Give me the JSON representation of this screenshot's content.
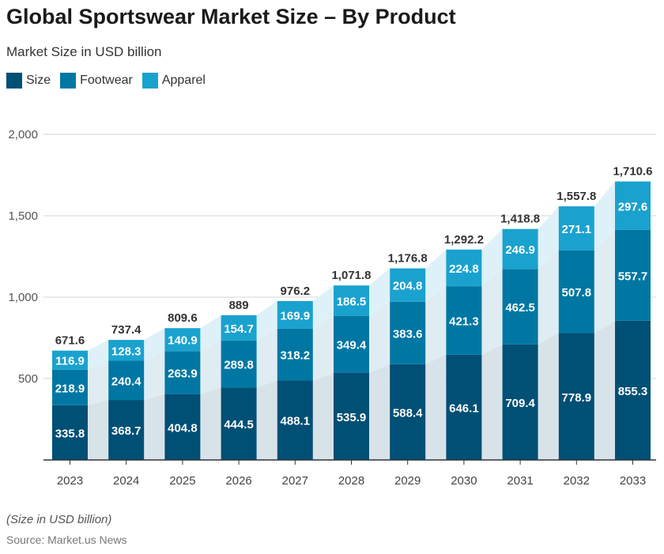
{
  "chart_data": {
    "type": "bar",
    "stacked": true,
    "title": "Global Sportswear Market Size – By Product",
    "subtitle": "Market Size in USD billion",
    "categories": [
      "2023",
      "2024",
      "2025",
      "2026",
      "2027",
      "2028",
      "2029",
      "2030",
      "2031",
      "2032",
      "2033"
    ],
    "series": [
      {
        "name": "Size",
        "color": "#004f75",
        "area_color": "#d8e3e9",
        "values": [
          335.8,
          368.7,
          404.8,
          444.5,
          488.1,
          535.9,
          588.4,
          646.1,
          709.4,
          778.9,
          855.3
        ]
      },
      {
        "name": "Footwear",
        "color": "#0077a3",
        "area_color": "#dfedf3",
        "values": [
          218.9,
          240.4,
          263.9,
          289.8,
          318.2,
          349.4,
          383.6,
          421.3,
          462.5,
          507.8,
          557.7
        ]
      },
      {
        "name": "Apparel",
        "color": "#1aa2cf",
        "area_color": "#def1f8",
        "values": [
          116.9,
          128.3,
          140.9,
          154.7,
          169.9,
          186.5,
          204.8,
          224.8,
          246.9,
          271.1,
          297.6
        ]
      }
    ],
    "totals": [
      "671.6",
      "737.4",
      "809.6",
      "889",
      "976.2",
      "1,071.8",
      "1,176.8",
      "1,292.2",
      "1,418.8",
      "1,557.8",
      "1,710.6"
    ],
    "ylim": [
      0,
      2000
    ],
    "yticks": [
      500,
      1000,
      1500,
      2000
    ],
    "ytick_labels": [
      "500",
      "1,000",
      "1,500",
      "2,000"
    ],
    "grid": true,
    "legend_placement": "top-left",
    "xlabel": "",
    "ylabel": ""
  },
  "footer": {
    "note": "(Size in USD billion)",
    "source": "Source: Market.us News"
  }
}
